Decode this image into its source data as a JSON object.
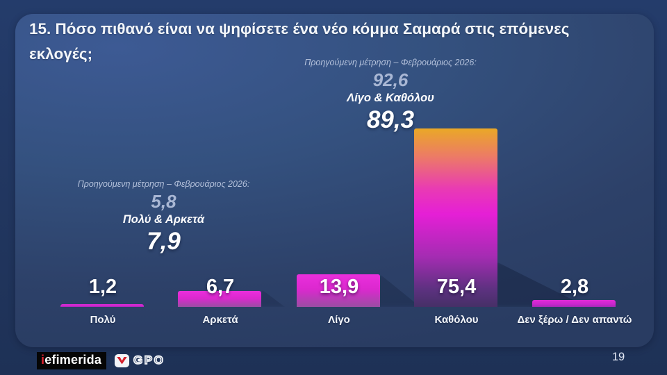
{
  "slide": {
    "title_line1": "15. Πόσο πιθανό είναι να ψηφίσετε ένα νέο κόμμα Σαμαρά στις επόμενες",
    "title_line2": "εκλογές;",
    "page_number": "19"
  },
  "chart_data": {
    "type": "bar",
    "title": "15. Πόσο πιθανό είναι να ψηφίσετε ένα νέο κόμμα Σαμαρά στις επόμενες εκλογές;",
    "categories": [
      "Πολύ",
      "Αρκετά",
      "Λίγο",
      "Καθόλου",
      "Δεν ξέρω / Δεν απαντώ"
    ],
    "values": [
      1.2,
      6.7,
      13.9,
      75.4,
      2.8
    ],
    "value_labels": [
      "1,2",
      "6,7",
      "13,9",
      "75,4",
      "2,8"
    ],
    "bar_styles": [
      "thin",
      "small",
      "small",
      "tall",
      "thin"
    ],
    "ylim": [
      0,
      80
    ],
    "grid": false,
    "legend": false,
    "annotations": [
      {
        "position": "top-center",
        "label": "Προηγούμενη μέτρηση – Φεβρουάριος 2026:",
        "previous_value": "92,6",
        "group": "Λίγο & Καθόλου",
        "current_value": "89,3"
      },
      {
        "position": "middle-left",
        "label": "Προηγούμενη μέτρηση – Φεβρουάριος 2026:",
        "previous_value": "5,8",
        "group": "Πολύ & Αρκετά",
        "current_value": "7,9"
      }
    ]
  },
  "footer": {
    "logo_iefimerida_prefix": "i",
    "logo_iefimerida_text": "efimerida",
    "logo_gpo_text": "GPO"
  },
  "colors": {
    "magenta": "#cf24ce",
    "bar_gradient_top": "#eaa827",
    "bar_gradient_mid": "#e51fd6",
    "bar_gradient_bottom": "#463067",
    "card_blue": "#33507e",
    "background_navy": "#20345c",
    "accent_red": "#e02330",
    "annotation_muted": "#a9b7d4"
  }
}
